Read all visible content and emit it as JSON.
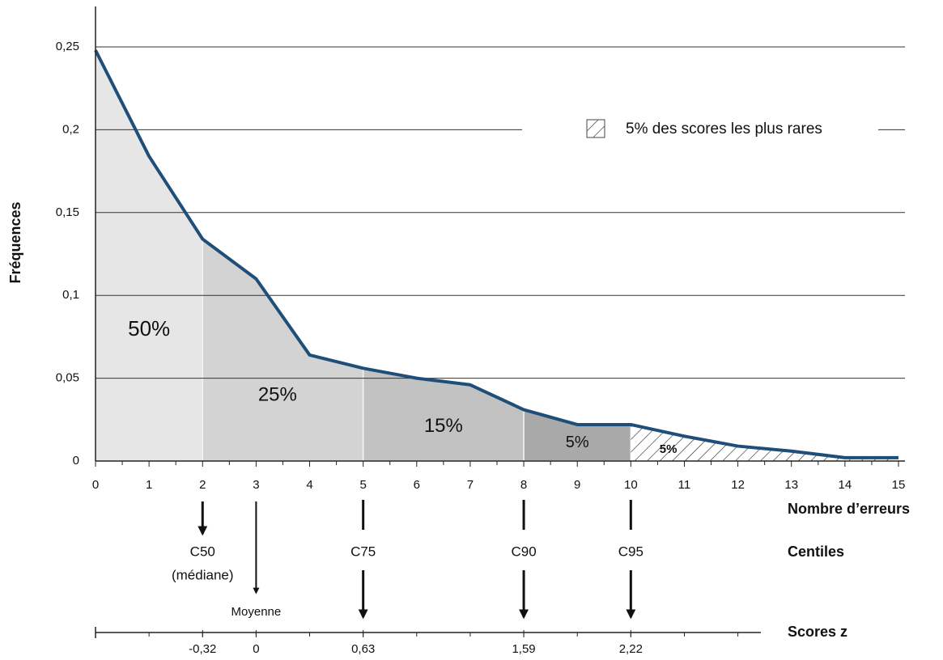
{
  "chart_data": {
    "type": "line",
    "x_label": "Nombre d’erreurs",
    "y_label": "Fréquences",
    "x": [
      0,
      1,
      2,
      3,
      4,
      5,
      6,
      7,
      8,
      9,
      10,
      11,
      12,
      13,
      14,
      15
    ],
    "series": [
      {
        "color": "#1f4e79",
        "values": [
          0.248,
          0.184,
          0.134,
          0.11,
          0.064,
          0.056,
          0.05,
          0.046,
          0.031,
          0.022,
          0.022,
          0.015,
          0.009,
          0.006,
          0.002,
          0.002
        ]
      }
    ],
    "xlim": [
      0,
      15
    ],
    "xticks": [
      0,
      1,
      2,
      3,
      4,
      5,
      6,
      7,
      8,
      9,
      10,
      11,
      12,
      13,
      14,
      15
    ],
    "ylim": [
      0,
      0.25
    ],
    "yticks": [
      0,
      {
        "value": 0.05,
        "label": "0,05"
      },
      {
        "value": 0.1,
        "label": "0,1"
      },
      {
        "value": 0.15,
        "label": "0,15"
      },
      {
        "value": 0.2,
        "label": "0,2"
      },
      {
        "value": 0.25,
        "label": "0,25"
      }
    ],
    "grid": true,
    "regions": [
      {
        "from": 0,
        "to": 2,
        "label": "50%",
        "color": "#e6e6e6"
      },
      {
        "from": 2,
        "to": 5,
        "label": "25%",
        "color": "#d3d3d3"
      },
      {
        "from": 5,
        "to": 8,
        "label": "15%",
        "color": "#c2c2c2"
      },
      {
        "from": 8,
        "to": 10,
        "label": "5%",
        "color": "#a9a9a9"
      },
      {
        "from": 10,
        "to": 15,
        "label": "5%",
        "pattern": "hatch"
      }
    ],
    "legend": {
      "label": "5% des scores les plus rares",
      "pattern": "hatch"
    },
    "centiles_title": "Centiles",
    "centiles": [
      {
        "x": 2,
        "label": "C50",
        "note": "(médiane)"
      },
      {
        "x": 5,
        "label": "C75"
      },
      {
        "x": 8,
        "label": "C90"
      },
      {
        "x": 10,
        "label": "C95"
      }
    ],
    "mean": {
      "x": 3,
      "label": "Moyenne"
    },
    "z_scores": {
      "title": "Scores z",
      "x": [
        2,
        3,
        5,
        8,
        10
      ],
      "ticks": [
        {
          "value": -0.32,
          "label": "-0,32"
        },
        0,
        {
          "value": 0.63,
          "label": "0,63"
        },
        {
          "value": 1.59,
          "label": "1,59"
        },
        {
          "value": 2.22,
          "label": "2,22"
        }
      ]
    }
  }
}
